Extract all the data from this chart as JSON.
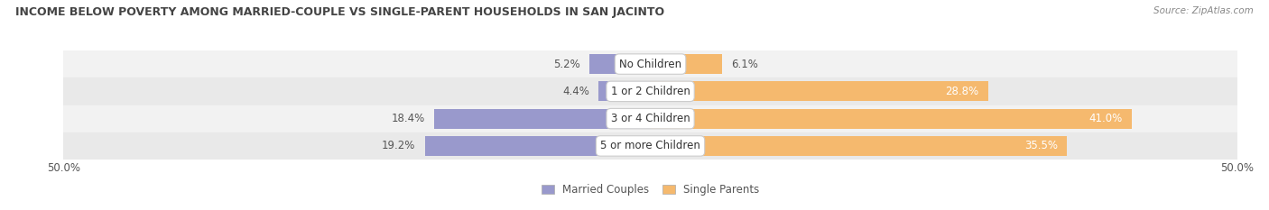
{
  "title": "INCOME BELOW POVERTY AMONG MARRIED-COUPLE VS SINGLE-PARENT HOUSEHOLDS IN SAN JACINTO",
  "source": "Source: ZipAtlas.com",
  "categories": [
    "No Children",
    "1 or 2 Children",
    "3 or 4 Children",
    "5 or more Children"
  ],
  "married_values": [
    5.2,
    4.4,
    18.4,
    19.2
  ],
  "single_values": [
    6.1,
    28.8,
    41.0,
    35.5
  ],
  "married_color": "#9999cc",
  "single_color": "#f5b96e",
  "xlim": 50.0,
  "bar_height": 0.72,
  "title_fontsize": 9.0,
  "label_fontsize": 8.5,
  "tick_fontsize": 8.5,
  "legend_fontsize": 8.5,
  "source_fontsize": 7.5,
  "title_color": "#444444",
  "text_color": "#555555",
  "center_label_color": "#333333",
  "row_colors": [
    "#f2f2f2",
    "#e9e9e9"
  ]
}
